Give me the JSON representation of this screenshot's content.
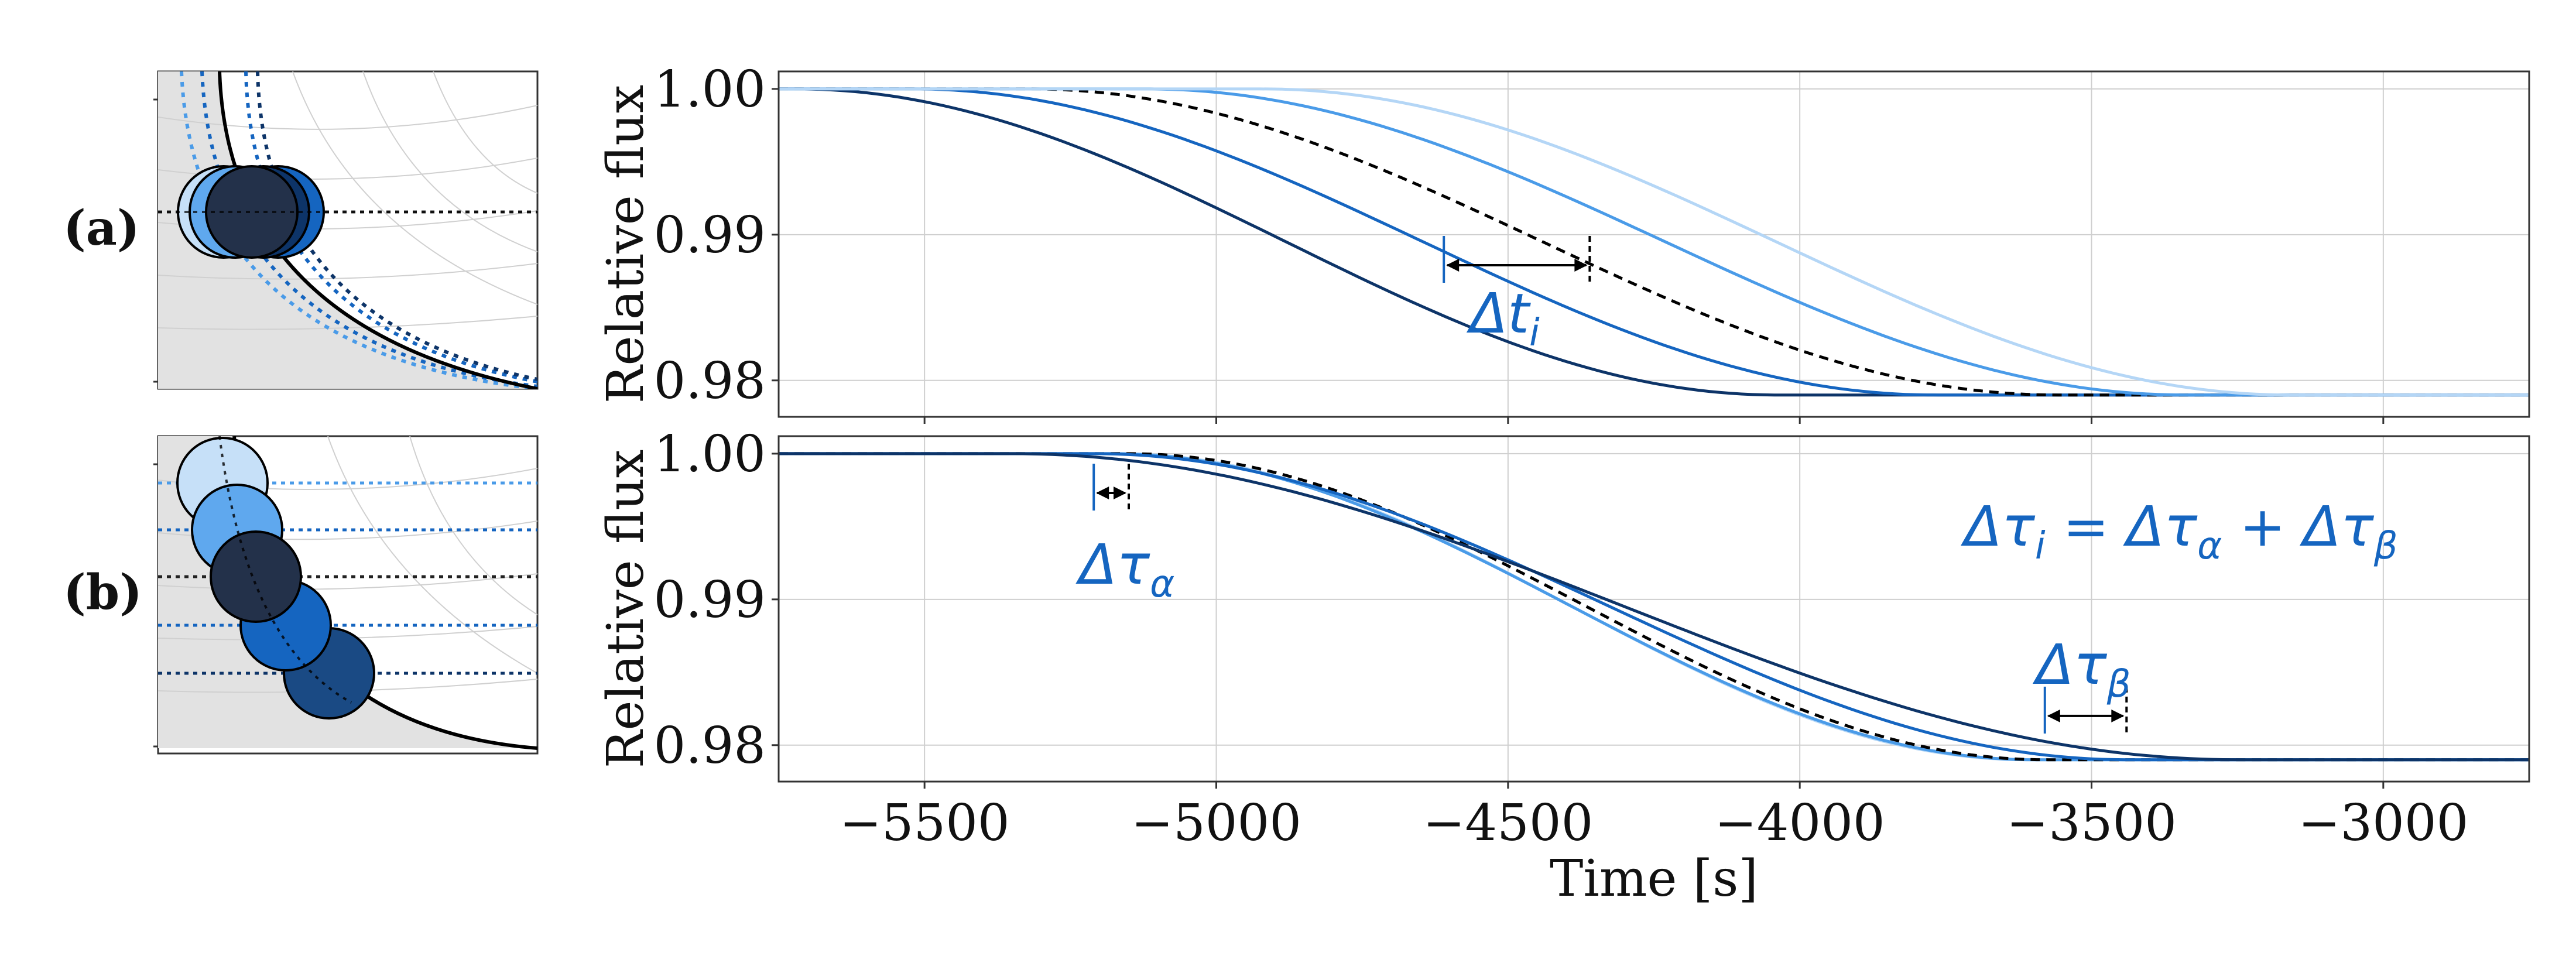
{
  "panel_labels": [
    "(a)",
    "(b)"
  ],
  "chart_data": [
    {
      "type": "line",
      "panel": "(a)",
      "title": "",
      "xlabel": "",
      "ylabel": "Relative flux",
      "xlim": [
        -5750,
        -2750
      ],
      "ylim": [
        0.9775,
        1.0012
      ],
      "yticks": [
        "1.00",
        "0.99",
        "0.98"
      ],
      "grid": true,
      "series": [
        {
          "name": "a-curve-1",
          "color": "#0d3468",
          "style": "solid",
          "t_start": -5720,
          "t_end": -4040
        },
        {
          "name": "a-curve-2",
          "color": "#1565c0",
          "style": "solid",
          "t_start": -5520,
          "t_end": -3770
        },
        {
          "name": "a-reference",
          "color": "#000000",
          "style": "dashed",
          "t_start": -5320,
          "t_end": -3560
        },
        {
          "name": "a-curve-3",
          "color": "#4a9be8",
          "style": "solid",
          "t_start": -5120,
          "t_end": -3340
        },
        {
          "name": "a-curve-4",
          "color": "#b4d6f6",
          "style": "solid",
          "t_start": -4920,
          "t_end": -3160
        }
      ],
      "annotations": [
        {
          "text": "Δt",
          "sub": "i",
          "from_x": -4610,
          "to_x": -4360,
          "y": 0.9871
        }
      ]
    },
    {
      "type": "line",
      "panel": "(b)",
      "title": "",
      "xlabel": "Time [s]",
      "ylabel": "Relative flux",
      "xlim": [
        -5750,
        -2750
      ],
      "ylim": [
        0.9775,
        1.0012
      ],
      "xticks": [
        -5500,
        -5000,
        -4500,
        -4000,
        -3500,
        -3000
      ],
      "yticks": [
        "1.00",
        "0.99",
        "0.98"
      ],
      "grid": true,
      "series": [
        {
          "name": "b-curve-1",
          "color": "#b4d6f6",
          "style": "solid",
          "t_start": -5170,
          "t_end": -3610
        },
        {
          "name": "b-curve-2",
          "color": "#4a9be8",
          "style": "solid",
          "t_start": -5180,
          "t_end": -3600
        },
        {
          "name": "b-reference",
          "color": "#000000",
          "style": "dashed",
          "t_start": -5150,
          "t_end": -3580
        },
        {
          "name": "b-curve-3",
          "color": "#1565c0",
          "style": "solid",
          "t_start": -5210,
          "t_end": -3440
        },
        {
          "name": "b-curve-4",
          "color": "#0d3468",
          "style": "solid",
          "t_start": -5350,
          "t_end": -3250
        }
      ],
      "annotations": [
        {
          "text": "Δτ",
          "sub": "α",
          "from_x": -5210,
          "to_x": -5150,
          "y": 0.9965
        },
        {
          "text": "Δτ",
          "sub": "β",
          "from_x": -3580,
          "to_x": -3440,
          "y": 0.9812
        }
      ],
      "equation": {
        "lhs": "Δτ",
        "lhs_sub": "i",
        "eq": " = ",
        "t1": "Δτ",
        "t1_sub": "α",
        "plus": " + ",
        "t2": "Δτ",
        "t2_sub": "β"
      }
    }
  ]
}
